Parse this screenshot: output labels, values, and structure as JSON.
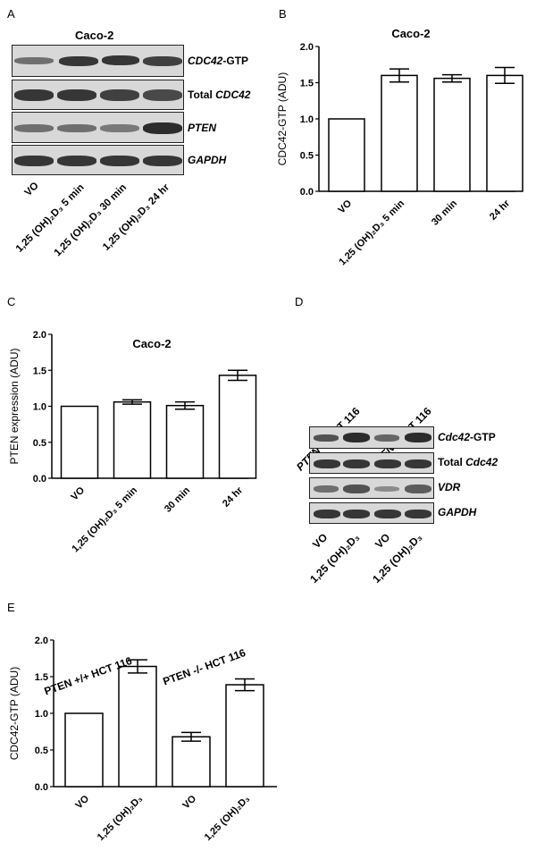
{
  "panel_a": {
    "letter": "A",
    "title": "Caco-2",
    "blots": [
      {
        "name": "cdc42-gtp",
        "label_em": "CDC42",
        "label_rest": "-GTP"
      },
      {
        "name": "total-cdc42",
        "label_pre": "Total ",
        "label_em": "CDC42",
        "label_rest": ""
      },
      {
        "name": "pten",
        "label_em": "PTEN",
        "label_rest": ""
      },
      {
        "name": "gapdh",
        "label_em": "GAPDH",
        "label_rest": ""
      }
    ],
    "lanes": [
      "VO",
      "1,25 (OH)₂D₃ 5 min",
      "1,25 (OH)₂D₃ 30 min",
      "1,25 (OH)₂D₃ 24 hr"
    ]
  },
  "panel_d": {
    "letter": "D",
    "groups": [
      "PTEN +/+ HCT 116",
      "PTEN -/- HCT 116"
    ],
    "blots": [
      {
        "name": "cdc42-gtp",
        "label_em": "Cdc42",
        "label_rest": "-GTP"
      },
      {
        "name": "total-cdc42",
        "label_pre": "Total ",
        "label_em": "Cdc42",
        "label_rest": ""
      },
      {
        "name": "vdr",
        "label_em": "VDR",
        "label_rest": ""
      },
      {
        "name": "gapdh",
        "label_em": "GAPDH",
        "label_rest": ""
      }
    ],
    "lanes": [
      "VO",
      "1,25 (OH)₂D₃",
      "VO",
      "1,25 (OH)₂D₃"
    ]
  },
  "chart_data": [
    {
      "panel": "B",
      "type": "bar",
      "title": "Caco-2",
      "ylabel": "CDC42-GTP (ADU)",
      "categories": [
        "VO",
        "1,25 (OH)₂D₃ 5 min",
        "30 min",
        "24 hr"
      ],
      "values": [
        1.0,
        1.6,
        1.56,
        1.6
      ],
      "errors": [
        0,
        0.09,
        0.05,
        0.11
      ],
      "ylim": [
        0,
        2.0
      ],
      "yticks": [
        "0.0",
        "0.5",
        "1.0",
        "1.5",
        "2.0"
      ]
    },
    {
      "panel": "C",
      "type": "bar",
      "title": "Caco-2",
      "ylabel": "PTEN expression (ADU)",
      "categories": [
        "VO",
        "1,25 (OH)₂D₃ 5 min",
        "30 min",
        "24 hr"
      ],
      "values": [
        1.0,
        1.06,
        1.01,
        1.43
      ],
      "errors": [
        0,
        0.03,
        0.05,
        0.07
      ],
      "ylim": [
        0,
        2.0
      ],
      "yticks": [
        "0.0",
        "0.5",
        "1.0",
        "1.5",
        "2.0"
      ]
    },
    {
      "panel": "E",
      "type": "bar",
      "title": "",
      "ylabel": "CDC42-GTP (ADU)",
      "categories": [
        "VO",
        "1,25 (OH)₂D₃",
        "VO",
        "1,25 (OH)₂D₃"
      ],
      "groups": [
        "PTEN +/+ HCT 116",
        "PTEN -/- HCT 116"
      ],
      "values": [
        1.0,
        1.64,
        0.68,
        1.39
      ],
      "errors": [
        0,
        0.09,
        0.06,
        0.08
      ],
      "ylim": [
        0,
        2.0
      ],
      "yticks": [
        "0.0",
        "0.5",
        "1.0",
        "1.5",
        "2.0"
      ]
    }
  ]
}
